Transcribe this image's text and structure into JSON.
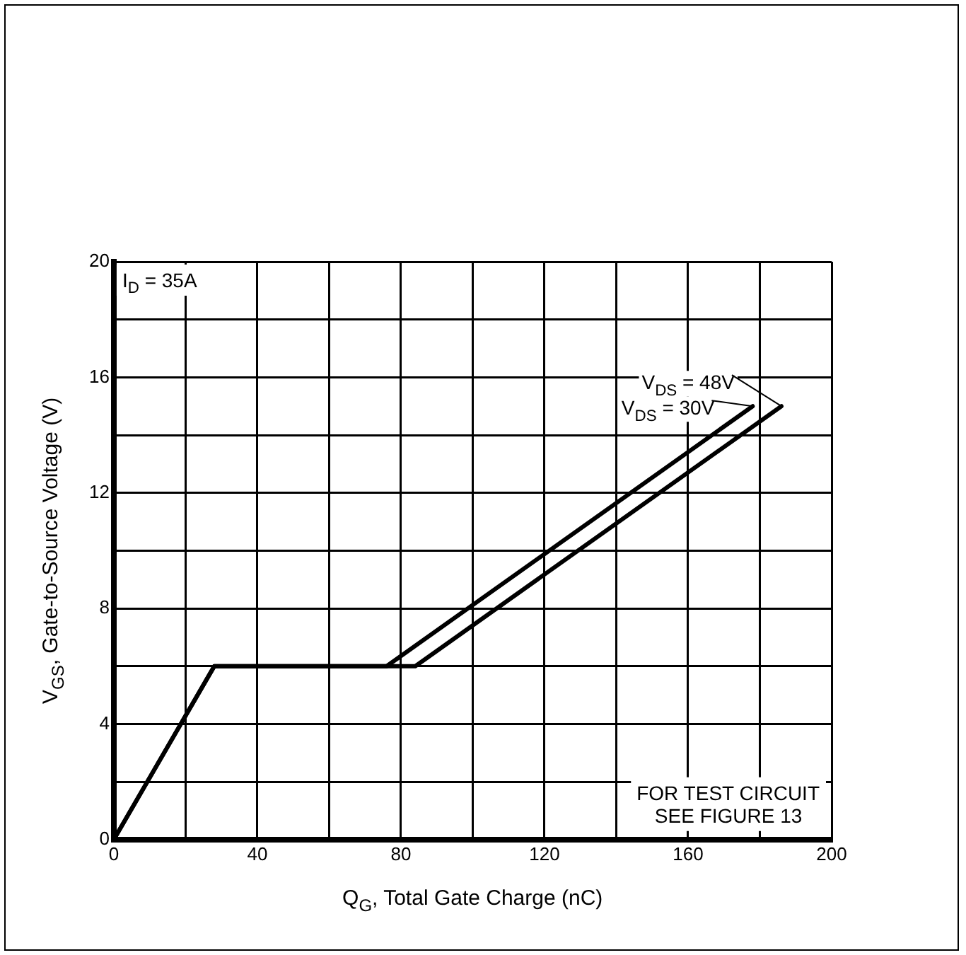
{
  "chart_data": {
    "type": "line",
    "xlabel": "Q$_{G}$, Total Gate Charge (nC)",
    "ylabel": "V$_{GS}$, Gate-to-Source Voltage (V)",
    "xlim": [
      0,
      200
    ],
    "ylim": [
      0,
      20
    ],
    "xticks": [
      0,
      {
        "value": 20,
        "label": null
      },
      40,
      {
        "value": 60,
        "label": null
      },
      80,
      {
        "value": 100,
        "label": null
      },
      120,
      {
        "value": 140,
        "label": null
      },
      160,
      {
        "value": 180,
        "label": null
      },
      200
    ],
    "yticks": [
      0,
      {
        "value": 2,
        "label": null
      },
      4,
      {
        "value": 6,
        "label": null
      },
      8,
      {
        "value": 10,
        "label": null
      },
      12,
      {
        "value": 14,
        "label": null
      },
      16,
      {
        "value": 18,
        "label": null
      },
      20
    ],
    "grid": true,
    "legend": "top right",
    "series": [
      {
        "name": "V$_{DS}$ = 30V",
        "color": "#000000",
        "x": [
          0,
          28,
          76,
          178
        ],
        "values": [
          0,
          6,
          6,
          15
        ]
      },
      {
        "name": "V$_{DS}$ = 48V",
        "color": "#000000",
        "x": [
          0,
          28,
          84,
          186
        ],
        "values": [
          0,
          6,
          6,
          15
        ]
      }
    ],
    "annotations": [
      "I$_{D}$ = 35A",
      "FOR TEST CIRCUIT\nSEE FIGURE 13"
    ]
  }
}
